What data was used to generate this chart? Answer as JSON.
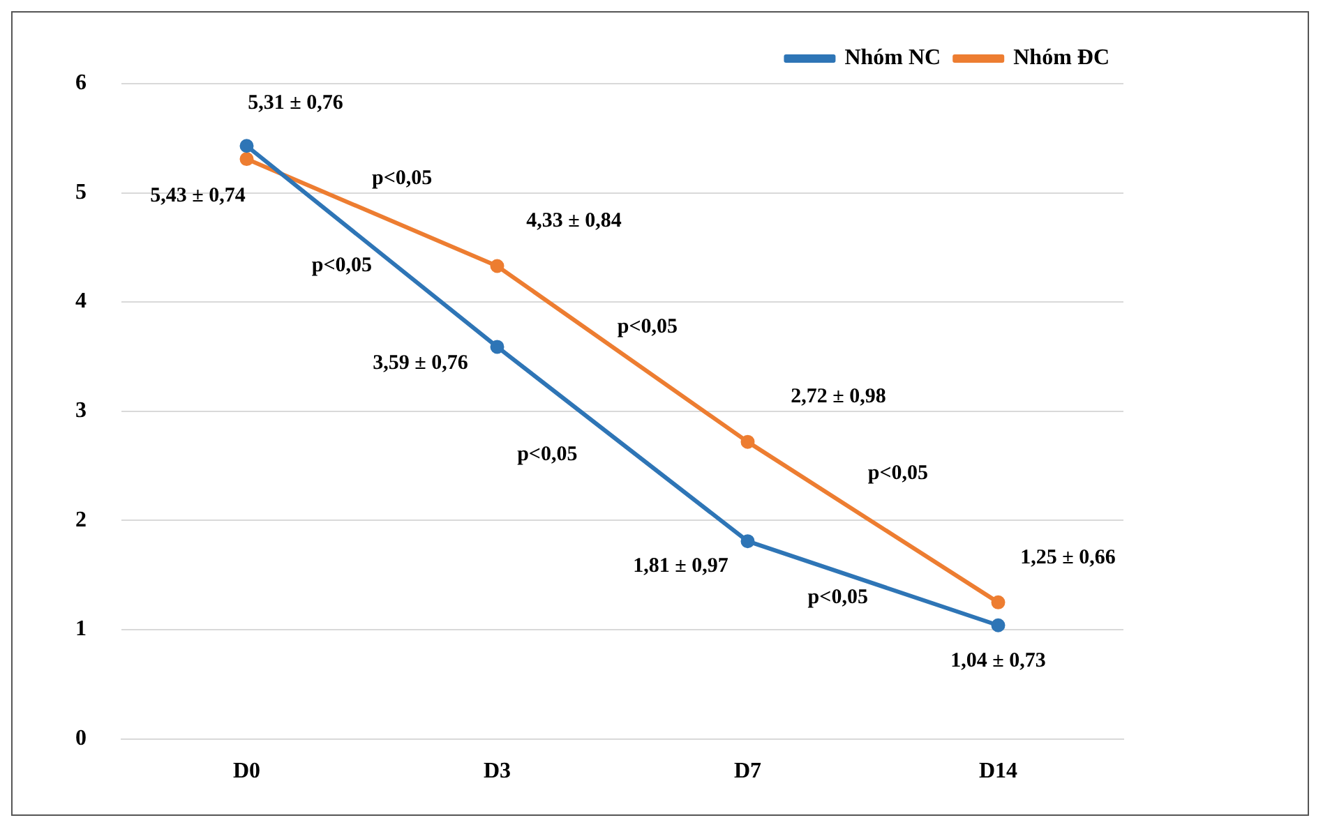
{
  "chart_data": {
    "type": "line",
    "categories": [
      "D0",
      "D3",
      "D7",
      "D14"
    ],
    "series": [
      {
        "name": "Nhóm NC",
        "color": "#2e75b6",
        "values": [
          5.43,
          3.59,
          1.81,
          1.04
        ],
        "value_labels": [
          "5,43 ± 0,74",
          "3,59 ± 0,76",
          "1,81 ± 0,97",
          "1,04 ± 0,73"
        ]
      },
      {
        "name": "Nhóm ĐC",
        "color": "#ed7d31",
        "values": [
          5.31,
          4.33,
          2.72,
          1.25
        ],
        "value_labels": [
          "5,31 ± 0,76",
          "4,33 ± 0,84",
          "2,72 ± 0,98",
          "1,25 ± 0,66"
        ]
      }
    ],
    "ylim": [
      0,
      6
    ],
    "yticks": [
      0,
      1,
      2,
      3,
      4,
      5,
      6
    ],
    "grid": "y",
    "legend": "top right",
    "marker": "circle",
    "line_style": "solid",
    "annotations": [
      "p<0,05",
      "p<0,05",
      "p<0,05",
      "p<0,05",
      "p<0,05",
      "p<0,05"
    ]
  }
}
